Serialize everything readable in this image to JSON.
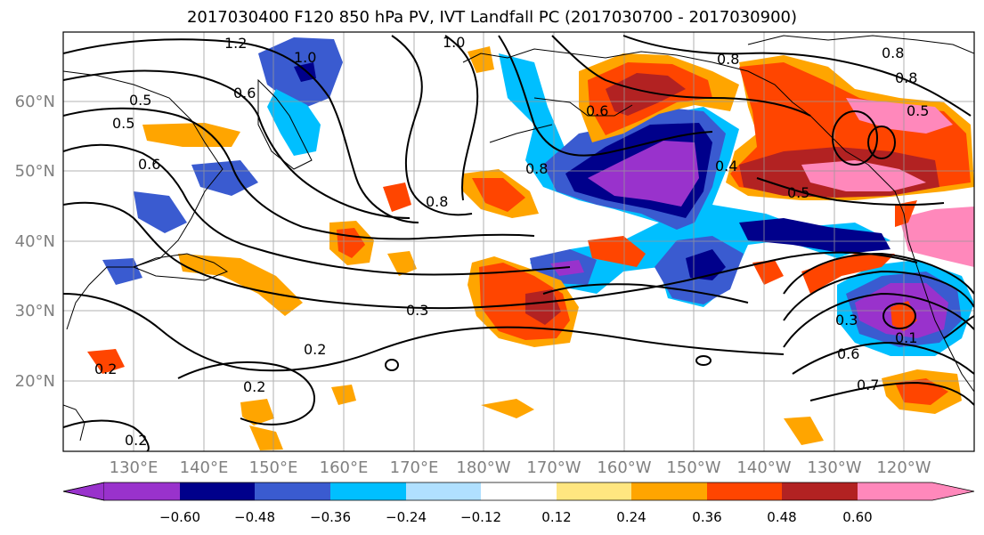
{
  "title": "2017030400 F120 850 hPa PV, IVT Landfall PC (2017030700 - 2017030900)",
  "lat_labels": [
    "60°N",
    "50°N",
    "40°N",
    "30°N",
    "20°N"
  ],
  "lon_labels": [
    "130°E",
    "140°E",
    "150°E",
    "160°E",
    "170°E",
    "180°W",
    "170°W",
    "160°W",
    "150°W",
    "140°W",
    "130°W",
    "120°W"
  ],
  "colorbar": {
    "ticks": [
      "−0.60",
      "−0.48",
      "−0.36",
      "−0.24",
      "−0.12",
      "0.12",
      "0.24",
      "0.36",
      "0.48",
      "0.60"
    ],
    "colors": [
      "#9932cc",
      "#00008b",
      "#3a5bd0",
      "#00bfff",
      "#b0e0ff",
      "#ffffff",
      "#ffe680",
      "#ffa500",
      "#ff4500",
      "#b22222",
      "#ff88bb"
    ]
  },
  "contour_labels": [
    "1.2",
    "1.0",
    "1.0",
    "0.6",
    "0.5",
    "0.6",
    "0.5",
    "0.8",
    "0.8",
    "0.8",
    "0.8",
    "0.8",
    "0.6",
    "0.5",
    "0.4",
    "0.5",
    "0.3",
    "0.2",
    "0.2",
    "0.2",
    "0.2",
    "0.6",
    "0.7",
    "0.3",
    "0.1"
  ]
}
